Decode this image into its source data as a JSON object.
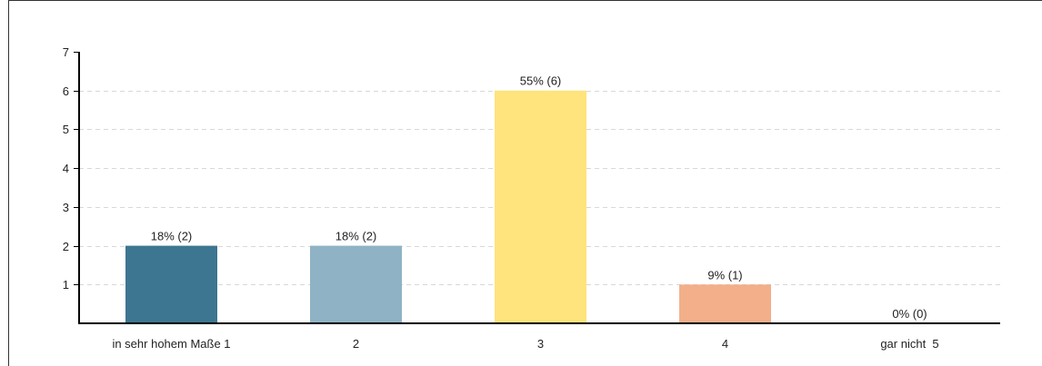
{
  "chart_data": {
    "type": "bar",
    "categories": [
      "in sehr hohem Maße 1",
      "2",
      "3",
      "4",
      "gar nicht  5"
    ],
    "values": [
      2,
      2,
      6,
      1,
      0
    ],
    "data_labels": [
      "18% (2)",
      "18% (2)",
      "55% (6)",
      "9% (1)",
      "0% (0)"
    ],
    "colors": [
      "#3d7690",
      "#8fb3c4",
      "#ffe37d",
      "#f2af8a",
      "#cccccc"
    ],
    "title": "",
    "xlabel": "",
    "ylabel": "",
    "ylim": [
      0,
      7
    ],
    "yticks": [
      1,
      2,
      3,
      4,
      5,
      6,
      7
    ],
    "grid": true,
    "legend": "none"
  }
}
